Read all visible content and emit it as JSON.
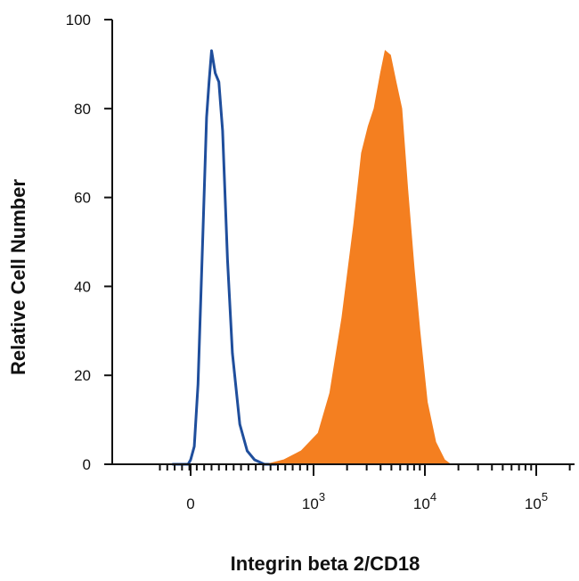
{
  "chart_data": {
    "type": "area",
    "title": "",
    "xlabel": "Integrin beta 2/CD18",
    "ylabel": "Relative Cell Number",
    "x_scale": "biexponential",
    "xlim": [
      -300,
      200000
    ],
    "ylim": [
      0,
      100
    ],
    "grid": false,
    "legend": "none",
    "y_ticks": [
      {
        "value": 0,
        "label": "0"
      },
      {
        "value": 20,
        "label": "20"
      },
      {
        "value": 40,
        "label": "40"
      },
      {
        "value": 60,
        "label": "60"
      },
      {
        "value": 80,
        "label": "80"
      },
      {
        "value": 100,
        "label": "100"
      }
    ],
    "x_ticks": [
      {
        "value": 0,
        "label": "0",
        "sup": ""
      },
      {
        "value": 1000,
        "label": "10",
        "sup": "3"
      },
      {
        "value": 10000,
        "label": "10",
        "sup": "4"
      },
      {
        "value": 100000,
        "label": "10",
        "sup": "5"
      }
    ],
    "series": [
      {
        "style": "outline",
        "color": "#1f4e9c",
        "points": [
          [
            -150,
            0
          ],
          [
            -20,
            0
          ],
          [
            0,
            1
          ],
          [
            30,
            4
          ],
          [
            60,
            18
          ],
          [
            100,
            52
          ],
          [
            130,
            78
          ],
          [
            150,
            86
          ],
          [
            170,
            93
          ],
          [
            200,
            88
          ],
          [
            230,
            86
          ],
          [
            260,
            75
          ],
          [
            300,
            46
          ],
          [
            340,
            25
          ],
          [
            400,
            9
          ],
          [
            460,
            3
          ],
          [
            520,
            1
          ],
          [
            600,
            0
          ],
          [
            700,
            0
          ]
        ]
      },
      {
        "style": "filled",
        "color": "#f47f20",
        "points": [
          [
            400,
            0
          ],
          [
            620,
            0
          ],
          [
            760,
            1
          ],
          [
            900,
            3
          ],
          [
            1100,
            7
          ],
          [
            1400,
            16
          ],
          [
            1800,
            33
          ],
          [
            2300,
            54
          ],
          [
            2700,
            70
          ],
          [
            3100,
            76
          ],
          [
            3500,
            80
          ],
          [
            4000,
            88
          ],
          [
            4400,
            93
          ],
          [
            4900,
            92
          ],
          [
            5500,
            86
          ],
          [
            6200,
            80
          ],
          [
            7000,
            62
          ],
          [
            8000,
            44
          ],
          [
            9000,
            30
          ],
          [
            10500,
            14
          ],
          [
            12500,
            5
          ],
          [
            15000,
            1
          ],
          [
            17000,
            0
          ]
        ]
      }
    ]
  }
}
